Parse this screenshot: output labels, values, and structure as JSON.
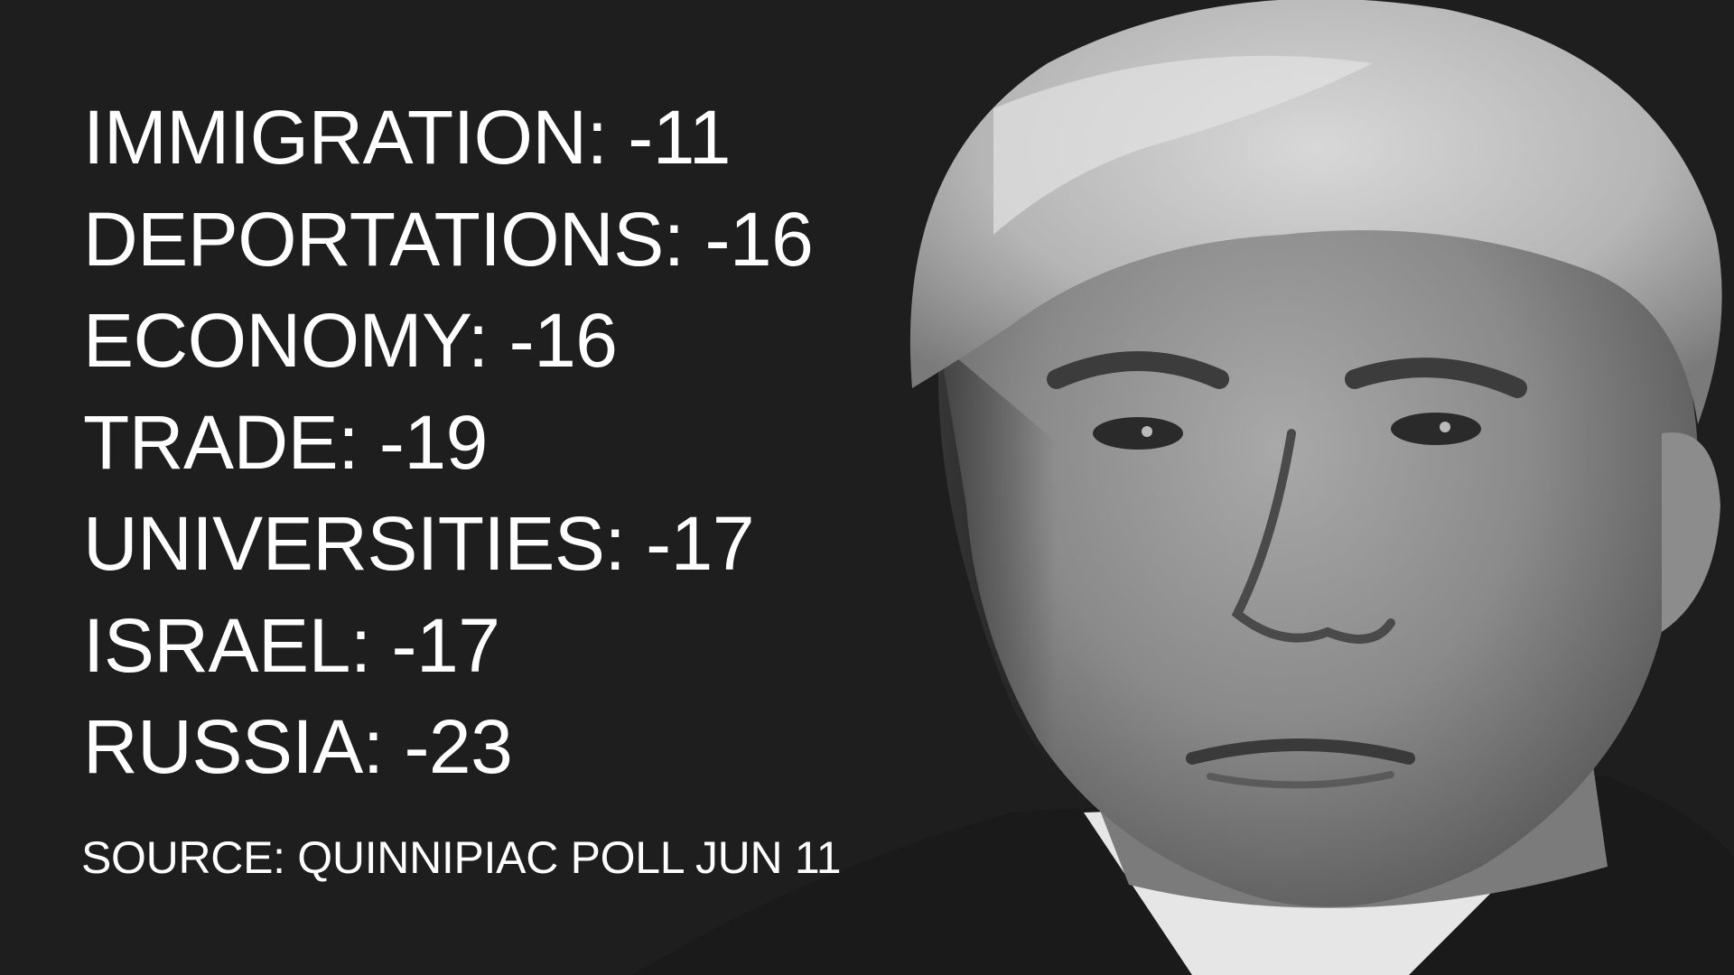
{
  "stats": [
    {
      "label": "IMMIGRATION",
      "value": "-11"
    },
    {
      "label": "DEPORTATIONS",
      "value": "-16"
    },
    {
      "label": "ECONOMY",
      "value": "-16"
    },
    {
      "label": "TRADE",
      "value": "-19"
    },
    {
      "label": "UNIVERSITIES",
      "value": "-17"
    },
    {
      "label": "ISRAEL",
      "value": "-17"
    },
    {
      "label": "RUSSIA",
      "value": "-23"
    }
  ],
  "source": "SOURCE: QUINNIPIAC POLL JUN 11",
  "colors": {
    "background": "#1e1e1e",
    "text": "#ffffff"
  }
}
